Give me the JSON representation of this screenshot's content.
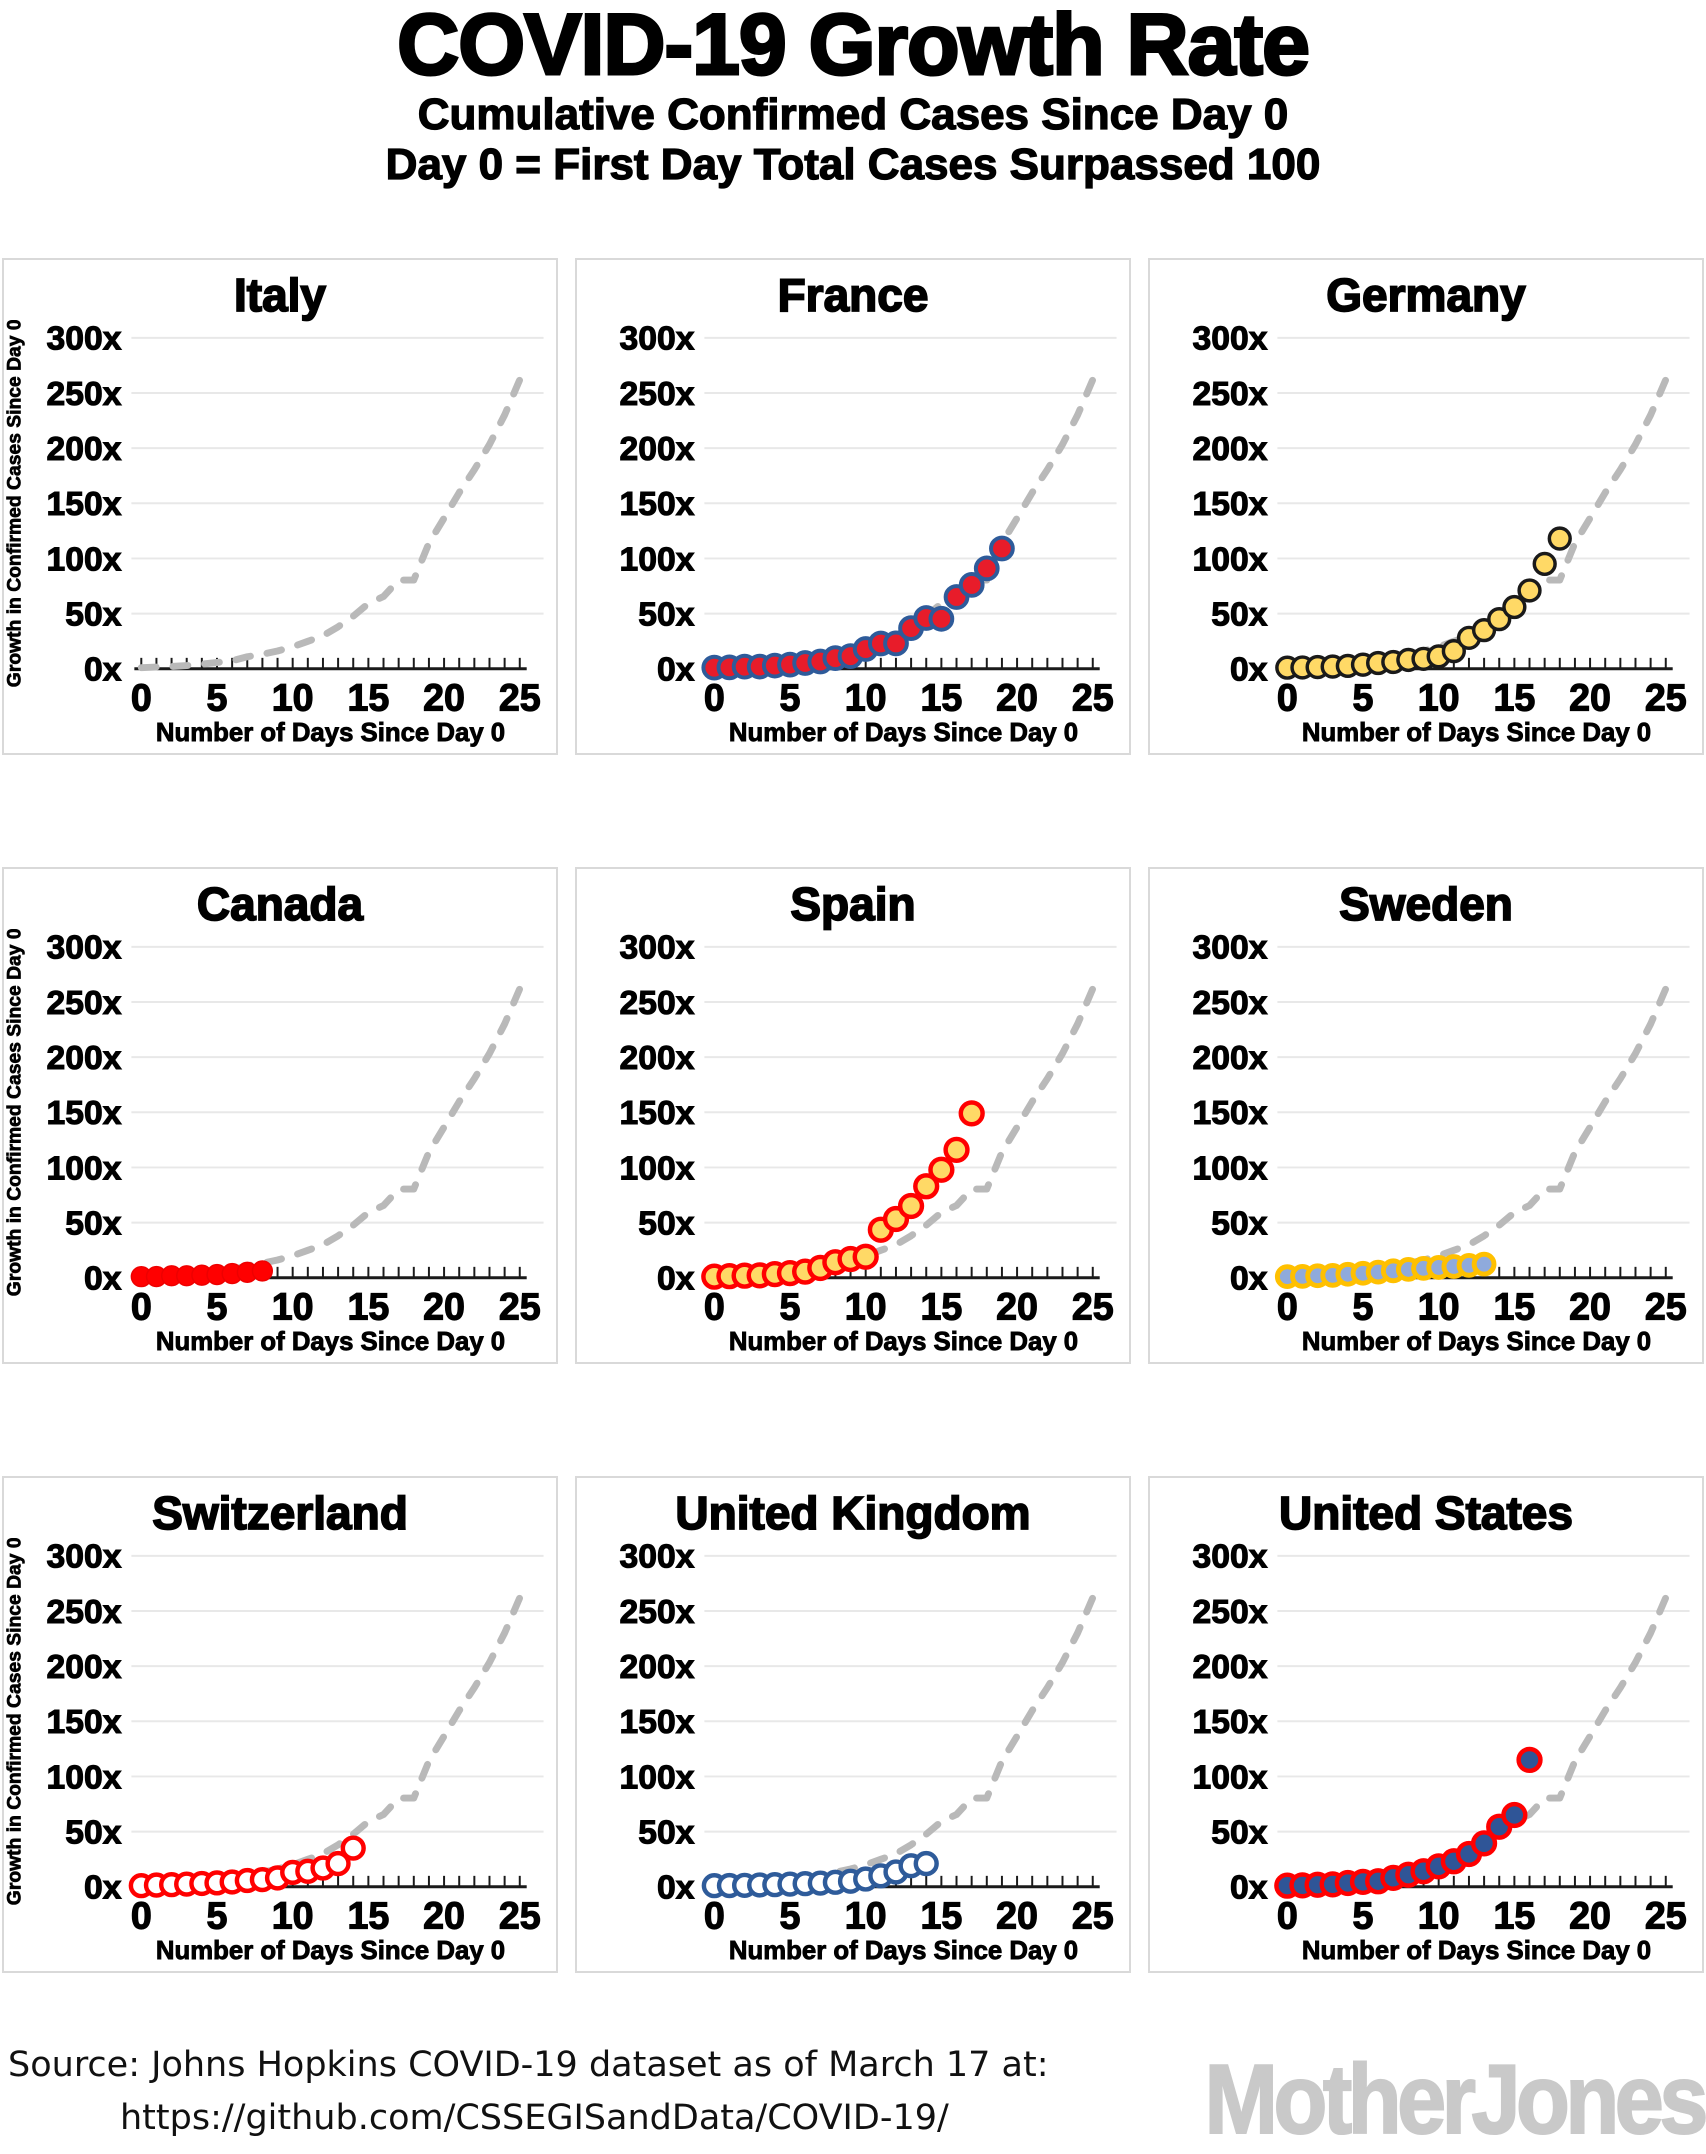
{
  "header": {
    "title": "COVID-19 Growth Rate",
    "subtitle1": "Cumulative Confirmed Cases Since Day 0",
    "subtitle2": "Day 0 = First Day Total Cases Surpassed 100"
  },
  "footer": {
    "source_line1": "Source: Johns Hopkins COVID-19 dataset as of March 17 at:",
    "source_line2": "https://github.com/CSSEGISandData/COVID-19/",
    "logo": "MotherJones"
  },
  "axes": {
    "x_label": "Number of Days Since Day 0",
    "y_label": "Growth in Confirmed Cases Since Day 0",
    "x_min": 0,
    "x_max": 25,
    "x_tick_interval": 1,
    "x_tick_labels": [
      0,
      5,
      10,
      15,
      20,
      25
    ],
    "y_min": 0,
    "y_max": 300,
    "y_tick_step": 50,
    "y_tick_labels": [
      "0x",
      "50x",
      "100x",
      "150x",
      "200x",
      "250x",
      "300x"
    ],
    "grid": "horizontal-only",
    "gridline_color": "#e8e8e8",
    "axis_color": "#1a1a1a"
  },
  "reference_curve": {
    "name": "Italy trajectory (shown dashed in every panel)",
    "color": "#b9b9b9",
    "style": "dashed",
    "days": [
      0,
      1,
      2,
      3,
      4,
      5,
      6,
      7,
      8,
      9,
      10,
      11,
      12,
      13,
      14,
      15,
      16,
      17,
      18,
      19,
      20,
      21,
      22,
      23,
      24,
      25
    ],
    "values": [
      1,
      1.5,
      2.1,
      2.9,
      4.2,
      5.7,
      7.3,
      10.9,
      13.1,
      16.1,
      19.9,
      24.9,
      29.9,
      38,
      47.6,
      59.2,
      65.5,
      80.4,
      80.4,
      113.9,
      136.5,
      159.7,
      180.5,
      203.3,
      230,
      262
    ]
  },
  "chart_data": [
    {
      "type": "scatter",
      "country": "Italy",
      "show_y_axis_title": true,
      "marker_fill": "none",
      "marker_stroke": "none",
      "marker_radius": 0,
      "marker_stroke_width": 0,
      "days": [],
      "values": [],
      "note": "Italy panel shows only the gray dashed reference curve"
    },
    {
      "type": "scatter",
      "country": "France",
      "show_y_axis_title": false,
      "marker_fill": "#e81c2a",
      "marker_stroke": "#2e5b9a",
      "marker_radius": 11,
      "marker_stroke_width": 4,
      "days": [
        0,
        1,
        2,
        3,
        4,
        5,
        6,
        7,
        8,
        9,
        10,
        11,
        12,
        13,
        14,
        15,
        16,
        17,
        18,
        19
      ],
      "values": [
        1,
        1.3,
        1.9,
        2,
        2.9,
        3.8,
        5.2,
        6.6,
        9.6,
        11.4,
        17.9,
        22.9,
        23,
        36.8,
        46,
        45.3,
        65,
        76,
        91,
        109
      ]
    },
    {
      "type": "scatter",
      "country": "Germany",
      "show_y_axis_title": false,
      "marker_fill": "#ffd966",
      "marker_stroke": "#1a1a1a",
      "marker_radius": 10.5,
      "marker_stroke_width": 3.5,
      "days": [
        0,
        1,
        2,
        3,
        4,
        5,
        6,
        7,
        8,
        9,
        10,
        11,
        12,
        13,
        14,
        15,
        16,
        17,
        18
      ],
      "values": [
        1,
        1.2,
        1.5,
        2,
        2.6,
        3.7,
        5.2,
        6.1,
        8,
        9,
        11.2,
        16,
        28,
        35,
        45,
        56,
        71,
        95,
        118
      ]
    },
    {
      "type": "scatter",
      "country": "Canada",
      "show_y_axis_title": true,
      "marker_fill": "#ff0000",
      "marker_stroke": "#ee0000",
      "marker_radius": 10,
      "marker_stroke_width": 1.5,
      "days": [
        0,
        1,
        2,
        3,
        4,
        5,
        6,
        7,
        8
      ],
      "values": [
        1,
        1.1,
        1.8,
        1.8,
        2.3,
        2.9,
        3.8,
        4.9,
        6.2
      ]
    },
    {
      "type": "scatter",
      "country": "Spain",
      "show_y_axis_title": false,
      "marker_fill": "#ffd966",
      "marker_stroke": "#ff0000",
      "marker_radius": 11,
      "marker_stroke_width": 4.5,
      "days": [
        0,
        1,
        2,
        3,
        4,
        5,
        6,
        7,
        8,
        9,
        10,
        11,
        12,
        13,
        14,
        15,
        16,
        17
      ],
      "values": [
        1,
        1.4,
        1.9,
        2.2,
        3.3,
        4.2,
        5.6,
        8.9,
        14.1,
        17,
        19,
        43.6,
        53.3,
        65,
        82.9,
        97.9,
        116,
        149
      ]
    },
    {
      "type": "scatter",
      "country": "Sweden",
      "show_y_axis_title": false,
      "marker_fill": "#8faadc",
      "marker_stroke": "#ffc000",
      "marker_radius": 10,
      "marker_stroke_width": 5,
      "days": [
        0,
        1,
        2,
        3,
        4,
        5,
        6,
        7,
        8,
        9,
        10,
        11,
        12,
        13
      ],
      "values": [
        1,
        1.3,
        1.8,
        2.2,
        3.1,
        4,
        5.1,
        6.3,
        7.5,
        8.5,
        9.3,
        10.2,
        11.2,
        12.3
      ]
    },
    {
      "type": "scatter",
      "country": "Switzerland",
      "show_y_axis_title": true,
      "marker_fill": "#ffffff",
      "marker_stroke": "#ff0000",
      "marker_radius": 10.5,
      "marker_stroke_width": 4.5,
      "days": [
        0,
        1,
        2,
        3,
        4,
        5,
        6,
        7,
        8,
        9,
        10,
        11,
        12,
        13,
        14
      ],
      "values": [
        1,
        1.5,
        1.9,
        2.4,
        3,
        3.5,
        4.3,
        5.7,
        6.5,
        8,
        13,
        14,
        17,
        21,
        35
      ]
    },
    {
      "type": "scatter",
      "country": "United Kingdom",
      "show_y_axis_title": false,
      "marker_fill": "#ffffff",
      "marker_stroke": "#2e5b9a",
      "marker_radius": 10.5,
      "marker_stroke_width": 4.5,
      "days": [
        0,
        1,
        2,
        3,
        4,
        5,
        6,
        7,
        8,
        9,
        10,
        11,
        12,
        13,
        14
      ],
      "values": [
        1,
        1.1,
        1.3,
        1.6,
        1.9,
        2.4,
        2.8,
        3.3,
        4,
        5,
        7,
        9.9,
        13.4,
        19,
        21
      ]
    },
    {
      "type": "scatter",
      "country": "United States",
      "show_y_axis_title": false,
      "marker_fill": "#2f5597",
      "marker_stroke": "#ff0000",
      "marker_radius": 11,
      "marker_stroke_width": 4.5,
      "days": [
        0,
        1,
        2,
        3,
        4,
        5,
        6,
        7,
        8,
        9,
        10,
        11,
        12,
        13,
        14,
        15,
        16
      ],
      "values": [
        1,
        1.3,
        1.8,
        2.2,
        3.4,
        4.4,
        4.9,
        8.1,
        10.9,
        14.1,
        18.5,
        23.1,
        29.7,
        39.3,
        54.4,
        65,
        115
      ]
    }
  ]
}
